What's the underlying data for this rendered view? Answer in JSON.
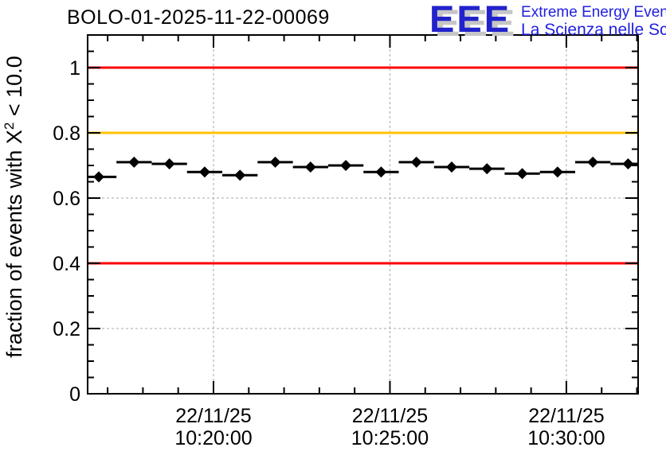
{
  "header": {
    "title": "BOLO-01-2025-11-22-00069",
    "logo": {
      "acronym": "EEE",
      "line1": "Extreme Energy Events",
      "line2": "La Scienza nelle Scuole",
      "text_color": "#2121e0",
      "acronym_color": "#2222cc",
      "shadow_color": "#c6c6c6"
    }
  },
  "chart_data": {
    "type": "scatter",
    "title": "BOLO-01-2025-11-22-00069",
    "xlabel": "",
    "ylabel": "fraction of events with X2 < 10.0",
    "ylabel_parts": {
      "prefix": "fraction of events with X",
      "sup": "2",
      "suffix": " < 10.0"
    },
    "ylim": [
      0,
      1.1
    ],
    "xlim": [
      "10:16:26",
      "10:32:02"
    ],
    "grid": true,
    "legend": "none",
    "marker": "filled-diamond",
    "marker_color": "#000000",
    "bin_width_seconds": 60,
    "x": [
      "10:16:45",
      "10:17:45",
      "10:18:45",
      "10:19:45",
      "10:20:45",
      "10:21:45",
      "10:22:45",
      "10:23:45",
      "10:24:45",
      "10:25:45",
      "10:26:45",
      "10:27:45",
      "10:28:45",
      "10:29:45",
      "10:30:45",
      "10:31:45"
    ],
    "values": [
      0.665,
      0.71,
      0.705,
      0.68,
      0.67,
      0.71,
      0.695,
      0.7,
      0.68,
      0.71,
      0.695,
      0.69,
      0.675,
      0.68,
      0.71,
      0.705
    ],
    "y_major_ticks": [
      0,
      0.2,
      0.4,
      0.6,
      0.8,
      1.0
    ],
    "y_tick_labels": [
      "0",
      "0.2",
      "0.4",
      "0.6",
      "0.8",
      "1"
    ],
    "y_minor_step": 0.05,
    "x_major_ticks": [
      {
        "date": "22/11/25",
        "time": "10:20:00"
      },
      {
        "date": "22/11/25",
        "time": "10:25:00"
      },
      {
        "date": "22/11/25",
        "time": "10:30:00"
      }
    ],
    "x_minor_step_seconds": 60,
    "reference_lines": [
      {
        "y": 1.0,
        "color": "#ff0000"
      },
      {
        "y": 0.8,
        "color": "#ffc200"
      },
      {
        "y": 0.4,
        "color": "#ff0000"
      }
    ],
    "grid_color": "#a8a8a8",
    "axis_color": "#000000",
    "background": "#ffffff"
  }
}
